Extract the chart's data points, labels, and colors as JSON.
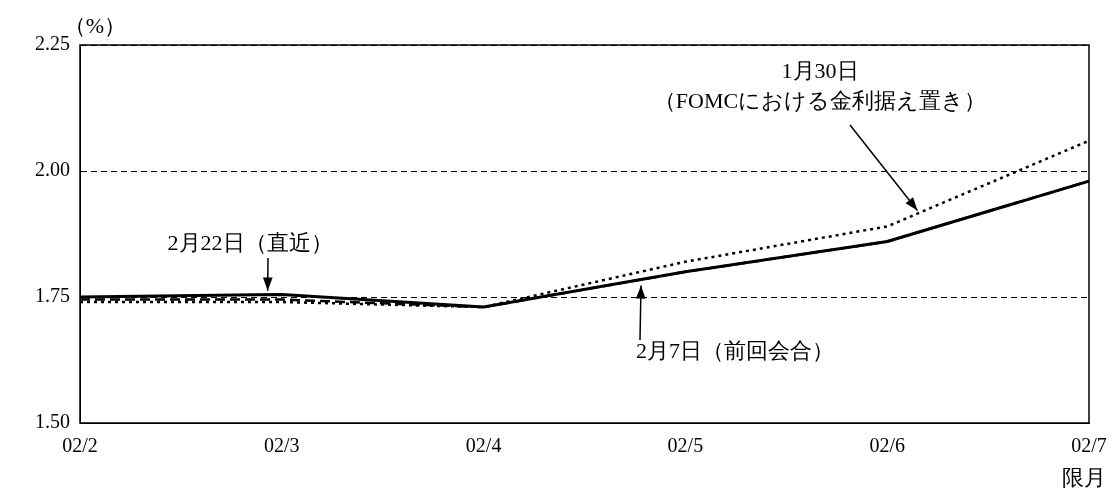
{
  "chart_data": {
    "type": "line",
    "ylabel": "（%）",
    "xlabel": "限月",
    "categories": [
      "02/2",
      "02/3",
      "02/4",
      "02/5",
      "02/6",
      "02/7"
    ],
    "series": [
      {
        "name": "2月22日（直近）",
        "color": "#000000",
        "line_style": "solid",
        "values": [
          1.75,
          1.755,
          1.73,
          1.8,
          1.86,
          1.98
        ]
      },
      {
        "name": "2月7日（前回会合）",
        "color": "#000000",
        "line_style": "dashed",
        "values": [
          1.745,
          1.745,
          1.73,
          1.8,
          1.86,
          1.98
        ]
      },
      {
        "name": "1月30日（FOMCにおける金利据え置き）",
        "color": "#000000",
        "line_style": "dotted",
        "values": [
          1.74,
          1.74,
          1.73,
          1.82,
          1.89,
          2.06
        ]
      }
    ],
    "ylim": [
      1.5,
      2.25
    ],
    "yticks": [
      {
        "value": 1.5,
        "label": "1.50"
      },
      {
        "value": 1.75,
        "label": "1.75"
      },
      {
        "value": 2.0,
        "label": "2.00"
      },
      {
        "value": 2.25,
        "label": "2.25"
      }
    ],
    "grid": "y",
    "legend": false,
    "marker": "none"
  }
}
